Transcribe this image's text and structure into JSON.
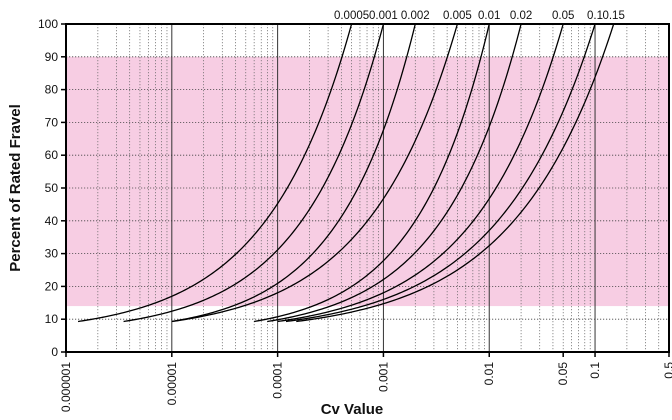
{
  "chart_data": {
    "type": "line",
    "xlabel": "Cv Value",
    "ylabel": "Percent of Rated Fravel",
    "x_scale": "log",
    "xlim": [
      1e-06,
      0.5
    ],
    "ylim": [
      0,
      100
    ],
    "x_ticks": [
      {
        "value": 1e-06,
        "label": "0.000001"
      },
      {
        "value": 1e-05,
        "label": "0.00001"
      },
      {
        "value": 0.0001,
        "label": "0.0001"
      },
      {
        "value": 0.001,
        "label": "0.001"
      },
      {
        "value": 0.01,
        "label": "0.01"
      },
      {
        "value": 0.05,
        "label": "0.05"
      },
      {
        "value": 0.1,
        "label": "0.1"
      },
      {
        "value": 0.5,
        "label": "0.5"
      }
    ],
    "y_ticks": [
      0,
      10,
      20,
      30,
      40,
      50,
      60,
      70,
      80,
      90,
      100
    ],
    "grid": true,
    "shaded_band": {
      "y_from": 14,
      "y_to": 90,
      "color": "#f7cde3"
    },
    "series": [
      {
        "name": "0.0005",
        "start_x": 1.3e-06,
        "end_x": 0.0005,
        "start_y": 9.3
      },
      {
        "name": "0.001",
        "start_x": 3.5e-06,
        "end_x": 0.001,
        "start_y": 9.3
      },
      {
        "name": "0.002",
        "start_x": 1e-05,
        "end_x": 0.002,
        "start_y": 9.3
      },
      {
        "name": "0.005",
        "start_x": 1e-05,
        "end_x": 0.005,
        "start_y": 9.3
      },
      {
        "name": "0.01",
        "start_x": 6e-05,
        "end_x": 0.01,
        "start_y": 9.3
      },
      {
        "name": "0.02",
        "start_x": 8e-05,
        "end_x": 0.02,
        "start_y": 9.3
      },
      {
        "name": "0.05",
        "start_x": 0.0001,
        "end_x": 0.05,
        "start_y": 9.3
      },
      {
        "name": "0.1",
        "start_x": 0.00012,
        "end_x": 0.1,
        "start_y": 9.3
      },
      {
        "name": "0.15",
        "start_x": 0.00015,
        "end_x": 0.15,
        "start_y": 9.3
      }
    ],
    "colors": {
      "line": "#000000",
      "grid": "#555555",
      "band": "#f7cde3"
    }
  }
}
